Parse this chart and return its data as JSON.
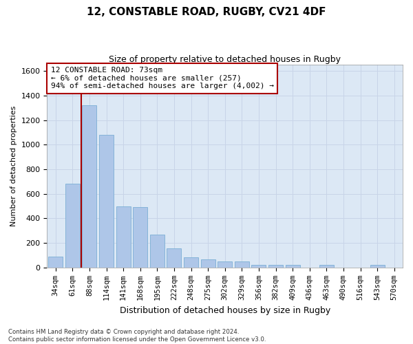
{
  "title_line1": "12, CONSTABLE ROAD, RUGBY, CV21 4DF",
  "title_line2": "Size of property relative to detached houses in Rugby",
  "xlabel": "Distribution of detached houses by size in Rugby",
  "ylabel": "Number of detached properties",
  "categories": [
    "34sqm",
    "61sqm",
    "88sqm",
    "114sqm",
    "141sqm",
    "168sqm",
    "195sqm",
    "222sqm",
    "248sqm",
    "275sqm",
    "302sqm",
    "329sqm",
    "356sqm",
    "382sqm",
    "409sqm",
    "436sqm",
    "463sqm",
    "490sqm",
    "516sqm",
    "543sqm",
    "570sqm"
  ],
  "values": [
    90,
    680,
    1320,
    1080,
    500,
    490,
    270,
    155,
    85,
    65,
    50,
    50,
    20,
    20,
    20,
    0,
    20,
    0,
    0,
    20,
    0
  ],
  "bar_color": "#aec6e8",
  "bar_edge_color": "#7aaed4",
  "vline_color": "#aa0000",
  "annotation_text": "12 CONSTABLE ROAD: 73sqm\n← 6% of detached houses are smaller (257)\n94% of semi-detached houses are larger (4,002) →",
  "annotation_box_color": "#ffffff",
  "annotation_box_edge_color": "#aa0000",
  "ylim": [
    0,
    1650
  ],
  "yticks": [
    0,
    200,
    400,
    600,
    800,
    1000,
    1200,
    1400,
    1600
  ],
  "footnote": "Contains HM Land Registry data © Crown copyright and database right 2024.\nContains public sector information licensed under the Open Government Licence v3.0.",
  "background_color": "#ffffff",
  "grid_color": "#c8d4e8",
  "ax_bg_color": "#dce8f5"
}
